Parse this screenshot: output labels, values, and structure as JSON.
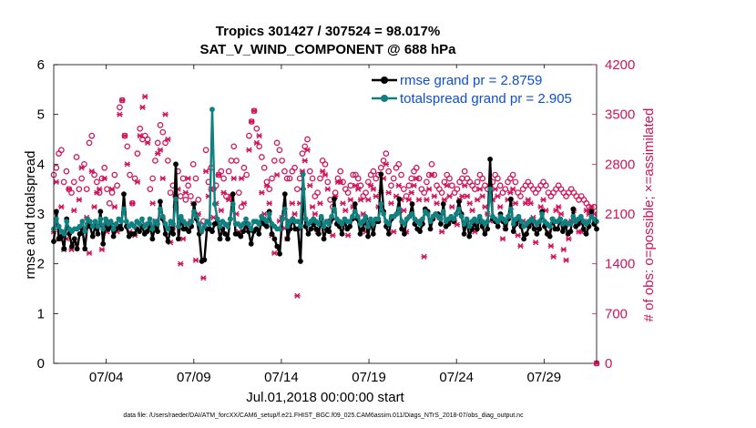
{
  "chart_data": {
    "type": "line",
    "title_line1": "Tropics 301427 / 307524 = 98.017%",
    "title_line2": "SAT_V_WIND_COMPONENT @ 688 hPa",
    "xlabel": "Jul.01,2018 00:00:00 start",
    "ylabel_left": "rmse and totalspread",
    "ylabel_right": "# of obs: o=possible; ×=assimilated",
    "footnote": "data file: /Users/raeder/DAI/ATM_forcXX/CAM6_setup/f.e21.FHIST_BGC.f09_025.CAM6assim.011/Diags_NTrS_2018-07/obs_diag_output.nc",
    "xlim": [
      1,
      32
    ],
    "ylim_left": [
      0,
      6
    ],
    "ylim_right": [
      0,
      4200
    ],
    "x_ticks": [
      4,
      9,
      14,
      19,
      24,
      29
    ],
    "x_tick_labels": [
      "07/04",
      "07/09",
      "07/14",
      "07/19",
      "07/24",
      "07/29"
    ],
    "y_ticks_left": [
      0,
      1,
      2,
      3,
      4,
      5,
      6
    ],
    "y_tick_labels_left": [
      "0",
      "1",
      "2",
      "3",
      "4",
      "5",
      "6"
    ],
    "y_ticks_right": [
      0,
      700,
      1400,
      2100,
      2800,
      3500,
      4200
    ],
    "y_tick_labels_right": [
      "0",
      "700",
      "1400",
      "2100",
      "2800",
      "3500",
      "4200"
    ],
    "legend_position": "top-right",
    "series": [
      {
        "name": "rmse grand pr = 2.8759",
        "axis": "left",
        "color": "#000000",
        "values": [
          2.45,
          3.05,
          2.5,
          2.55,
          2.3,
          2.9,
          2.6,
          2.35,
          2.5,
          2.3,
          2.6,
          2.7,
          2.3,
          2.8,
          2.75,
          2.55,
          2.75,
          2.6,
          3.05,
          2.4,
          2.8,
          2.7,
          2.8,
          2.55,
          2.7,
          2.75,
          2.7,
          3.4,
          2.75,
          2.55,
          2.6,
          2.6,
          2.7,
          2.65,
          2.75,
          2.6,
          2.65,
          2.8,
          2.5,
          2.75,
          2.65,
          3.25,
          2.9,
          2.6,
          2.45,
          2.7,
          2.6,
          4.0,
          2.5,
          2.9,
          2.7,
          2.7,
          2.65,
          2.75,
          3.2,
          2.9,
          2.6,
          2.05,
          2.08,
          2.7,
          2.7,
          2.65,
          2.8,
          2.85,
          2.5,
          2.7,
          2.6,
          2.5,
          2.9,
          3.4,
          2.6,
          2.6,
          2.55,
          2.65,
          2.8,
          2.65,
          2.4,
          2.65,
          2.7,
          2.6,
          2.85,
          2.8,
          2.75,
          3.05,
          2.6,
          2.5,
          2.35,
          2.2,
          2.9,
          3.4,
          2.5,
          2.7,
          2.9,
          2.7,
          2.7,
          2.05,
          3.5,
          2.75,
          2.6,
          2.7,
          2.8,
          2.7,
          2.6,
          2.9,
          2.5,
          2.7,
          2.65,
          2.9,
          3.3,
          2.8,
          2.75,
          2.6,
          2.85,
          2.7,
          2.75,
          2.9,
          3.2,
          2.9,
          2.6,
          2.7,
          2.9,
          2.55,
          2.85,
          2.6,
          2.85,
          2.85,
          3.8,
          3.05,
          2.75,
          2.6,
          2.9,
          2.95,
          3.0,
          3.3,
          2.7,
          2.6,
          2.9,
          2.95,
          3.2,
          2.8,
          2.7,
          2.65,
          2.8,
          3.1,
          3.05,
          2.7,
          2.9,
          3.0,
          3.0,
          2.8,
          3.2,
          2.75,
          2.8,
          2.9,
          2.85,
          3.0,
          3.25,
          3.0,
          2.6,
          2.85,
          2.55,
          2.7,
          2.8,
          2.7,
          2.9,
          2.75,
          2.6,
          2.7,
          4.1,
          2.9,
          2.85,
          2.75,
          3.0,
          2.85,
          2.7,
          2.9,
          3.3,
          2.65,
          2.8,
          2.9,
          2.75,
          2.5,
          2.6,
          2.75,
          2.85,
          2.7,
          2.6,
          2.7,
          3.05,
          2.75,
          2.6,
          2.55,
          2.9,
          2.7,
          2.7,
          2.9,
          2.65,
          2.75,
          2.6,
          2.65,
          3.1,
          2.75,
          2.8,
          2.9,
          2.7,
          2.6,
          2.75,
          3.05,
          2.8,
          2.7
        ]
      },
      {
        "name": "totalspread grand pr = 2.905",
        "axis": "left",
        "color": "#118080",
        "values": [
          2.7,
          2.9,
          2.75,
          2.65,
          2.6,
          2.85,
          2.7,
          2.65,
          2.7,
          2.7,
          2.75,
          2.85,
          2.65,
          2.9,
          2.85,
          2.75,
          2.85,
          2.75,
          2.9,
          2.7,
          2.9,
          2.8,
          2.85,
          2.7,
          2.8,
          2.9,
          2.85,
          3.1,
          2.85,
          2.75,
          2.8,
          2.75,
          2.85,
          2.8,
          2.9,
          2.75,
          2.8,
          2.9,
          2.7,
          2.85,
          2.8,
          3.1,
          2.95,
          2.8,
          2.7,
          2.85,
          2.8,
          3.3,
          2.75,
          2.95,
          2.85,
          2.8,
          2.8,
          2.85,
          3.05,
          2.95,
          2.8,
          2.65,
          2.75,
          2.85,
          2.8,
          5.1,
          3.2,
          2.9,
          2.75,
          2.85,
          2.8,
          2.75,
          2.9,
          3.2,
          2.8,
          2.8,
          2.75,
          2.8,
          2.9,
          2.8,
          2.7,
          2.85,
          2.85,
          2.8,
          2.95,
          2.9,
          2.85,
          3.0,
          2.8,
          2.75,
          2.7,
          2.7,
          2.9,
          3.1,
          2.75,
          2.85,
          2.9,
          2.85,
          2.85,
          2.75,
          3.8,
          2.9,
          2.8,
          2.85,
          2.9,
          2.85,
          2.8,
          2.95,
          2.75,
          2.85,
          2.8,
          2.95,
          3.1,
          2.9,
          2.85,
          2.8,
          2.9,
          2.85,
          2.85,
          2.95,
          3.05,
          2.95,
          2.8,
          2.85,
          2.95,
          2.75,
          2.9,
          2.8,
          2.9,
          2.9,
          3.2,
          3.0,
          2.85,
          2.8,
          2.95,
          2.95,
          3.0,
          3.1,
          2.85,
          2.8,
          2.9,
          2.95,
          3.0,
          2.9,
          2.85,
          2.8,
          2.9,
          3.05,
          3.0,
          2.85,
          2.95,
          3.0,
          2.95,
          2.9,
          3.05,
          2.85,
          2.9,
          2.95,
          2.9,
          3.0,
          3.1,
          2.95,
          2.8,
          2.9,
          2.75,
          2.85,
          2.9,
          2.85,
          2.95,
          2.85,
          2.8,
          2.85,
          3.5,
          2.95,
          2.9,
          2.85,
          2.95,
          2.9,
          2.85,
          2.95,
          3.1,
          2.8,
          2.9,
          2.95,
          2.85,
          2.75,
          2.8,
          2.85,
          2.9,
          2.85,
          2.8,
          2.85,
          3.0,
          2.85,
          2.8,
          2.75,
          2.9,
          2.85,
          2.85,
          2.9,
          2.8,
          2.85,
          2.8,
          2.8,
          2.95,
          2.85,
          2.9,
          2.95,
          2.85,
          2.8,
          2.85,
          2.95,
          2.9,
          2.85
        ]
      }
    ],
    "obs_series": [
      {
        "name": "possible",
        "marker": "o",
        "axis": "right",
        "color": "#d0145a",
        "values": [
          2650,
          2750,
          2950,
          3000,
          2550,
          2700,
          2450,
          2400,
          2550,
          2900,
          2450,
          2600,
          2800,
          2450,
          3100,
          3200,
          2650,
          2550,
          2400,
          2600,
          2750,
          2450,
          2250,
          2400,
          2650,
          2500,
          3600,
          3700,
          3200,
          3050,
          2650,
          2250,
          2600,
          2950,
          3300,
          3150,
          3200,
          3150,
          2450,
          2600,
          2850,
          3100,
          3350,
          3250,
          3100,
          2850,
          2400,
          2500,
          2350,
          2700,
          2350,
          2600,
          2300,
          2500,
          2350,
          2800,
          2600,
          2300,
          1950,
          2000,
          3000,
          2550,
          2750,
          2450,
          2500,
          2650,
          2700,
          2600,
          2350,
          2700,
          2850,
          3050,
          2850,
          2400,
          2200,
          2750,
          2650,
          3200,
          3400,
          3550,
          3300,
          3050,
          2900,
          2750,
          2550,
          2450,
          2600,
          2850,
          3100,
          3000,
          2850,
          2700,
          2600,
          2600,
          2700,
          2750,
          2450,
          2600,
          2950,
          3050,
          3150,
          2700,
          2600,
          2350,
          2400,
          2600,
          2850,
          2800,
          2550,
          2300,
          2200,
          2400,
          2600,
          2700,
          2550,
          2450,
          2400,
          2500,
          2650,
          2650,
          2600,
          2500,
          2350,
          2400,
          2550,
          2650,
          2700,
          2600,
          2650,
          2750,
          2850,
          2950,
          2700,
          2500,
          2600,
          2750,
          2800,
          2650,
          2450,
          2350,
          2500,
          2600,
          2700,
          2750,
          2600,
          2450,
          2400,
          2550,
          2650,
          2800,
          2650,
          2500,
          2450,
          2400,
          2550,
          2650,
          2600,
          2500,
          2400,
          2450,
          2550,
          2600,
          2700,
          2600,
          2550,
          2500,
          2450,
          2550,
          2650,
          2600,
          2500,
          2450,
          2500,
          2550,
          2650,
          2600,
          2500,
          2400,
          2450,
          2550,
          2600,
          2650,
          2550,
          2400,
          2350,
          2450,
          2500,
          2550,
          2500,
          2450,
          2400,
          2450,
          2500,
          2550,
          2500,
          2400,
          2350,
          2400,
          2450,
          2500,
          2450,
          2400,
          2350,
          2400,
          2450,
          2400,
          2350,
          2300,
          2350,
          2300,
          2250,
          2200,
          2150,
          2200,
          0
        ]
      },
      {
        "name": "assimilated",
        "marker": "x",
        "axis": "right",
        "color": "#d0145a",
        "values": [
          1850,
          2550,
          1750,
          2200,
          1600,
          1750,
          2450,
          1600,
          2150,
          1700,
          2300,
          2750,
          1850,
          2050,
          1550,
          2700,
          2200,
          2400,
          2450,
          1600,
          2600,
          1850,
          2000,
          2450,
          2200,
          1850,
          3500,
          3700,
          3200,
          2800,
          1850,
          2250,
          1800,
          2550,
          3200,
          3600,
          3750,
          3100,
          1900,
          2250,
          2000,
          2950,
          3000,
          2600,
          3500,
          3150,
          1700,
          1900,
          2200,
          2450,
          1400,
          1750,
          2400,
          2600,
          2000,
          2250,
          1450,
          2100,
          1850,
          1200,
          2700,
          2350,
          2450,
          2050,
          2250,
          2650,
          2150,
          2400,
          1950,
          2300,
          2350,
          2600,
          2100,
          1850,
          2600,
          2250,
          1900,
          3000,
          3400,
          3550,
          3100,
          3200,
          2400,
          2100,
          2500,
          2250,
          1800,
          1550,
          2650,
          2000,
          2050,
          1900,
          1750,
          2000,
          2250,
          2100,
          950,
          2250,
          2700,
          2850,
          3000,
          2500,
          2200,
          2100,
          1850,
          2250,
          2700,
          2650,
          2450,
          2000,
          1800,
          2350,
          2550,
          2550,
          2250,
          2150,
          1800,
          2300,
          2200,
          2500,
          2450,
          2300,
          2100,
          1850,
          2300,
          2500,
          2450,
          2350,
          2200,
          2400,
          2600,
          2800,
          2400,
          2250,
          1850,
          2350,
          2500,
          2300,
          2150,
          1850,
          2300,
          2400,
          2500,
          2600,
          2300,
          2000,
          1500,
          2300,
          2450,
          2650,
          2350,
          2250,
          2050,
          1850,
          2300,
          2500,
          2350,
          2200,
          2000,
          1950,
          2300,
          2350,
          2500,
          2350,
          2250,
          2150,
          1850,
          2300,
          2450,
          2350,
          2200,
          2100,
          2000,
          2300,
          2450,
          2350,
          2200,
          1750,
          1900,
          2300,
          2400,
          2450,
          2250,
          1800,
          1650,
          2000,
          2250,
          2300,
          2250,
          2050,
          1700,
          1900,
          2200,
          2300,
          2150,
          1850,
          1650,
          1500,
          2150,
          2200,
          2100,
          1600,
          1450,
          1750,
          2000,
          2150,
          2000,
          1850,
          1850,
          2000,
          2150,
          2100,
          2200,
          2100,
          0
        ]
      }
    ]
  }
}
